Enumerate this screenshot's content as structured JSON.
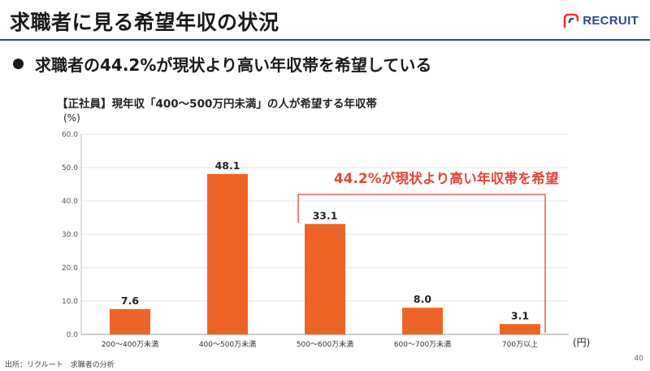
{
  "slide": {
    "title": "求職者に見る希望年収の状況",
    "logo_text": "RECRUIT",
    "headline": "求職者の44.2%が現状より高い年収帯を希望している",
    "source": "出所：リクルート　求職者の分析",
    "page_number": "40"
  },
  "colors": {
    "bar": "#ee6427",
    "annotation": "#e0463a",
    "title_rule": "#2c4a8f",
    "grid": "#e6e6e6"
  },
  "chart_data": {
    "type": "bar",
    "title": "【正社員】現年収「400～500万円未満」の人が希望する年収帯",
    "ylabel": "(%)",
    "xlabel_unit": "(円)",
    "ylim": [
      0,
      60
    ],
    "yticks": [
      "0.0",
      "10.0",
      "20.0",
      "30.0",
      "40.0",
      "50.0",
      "60.0"
    ],
    "categories": [
      "200～400万未満",
      "400～500万未満",
      "500～600万未満",
      "600～700万未満",
      "700万以上"
    ],
    "values": [
      7.6,
      48.1,
      33.1,
      8.0,
      3.1
    ],
    "value_labels": [
      "7.6",
      "48.1",
      "33.1",
      "8.0",
      "3.1"
    ],
    "annotation": {
      "text": "44.2%が現状より高い年収帯を希望",
      "from_category": "500～600万未満",
      "to_category": "700万以上"
    },
    "grid": true
  }
}
